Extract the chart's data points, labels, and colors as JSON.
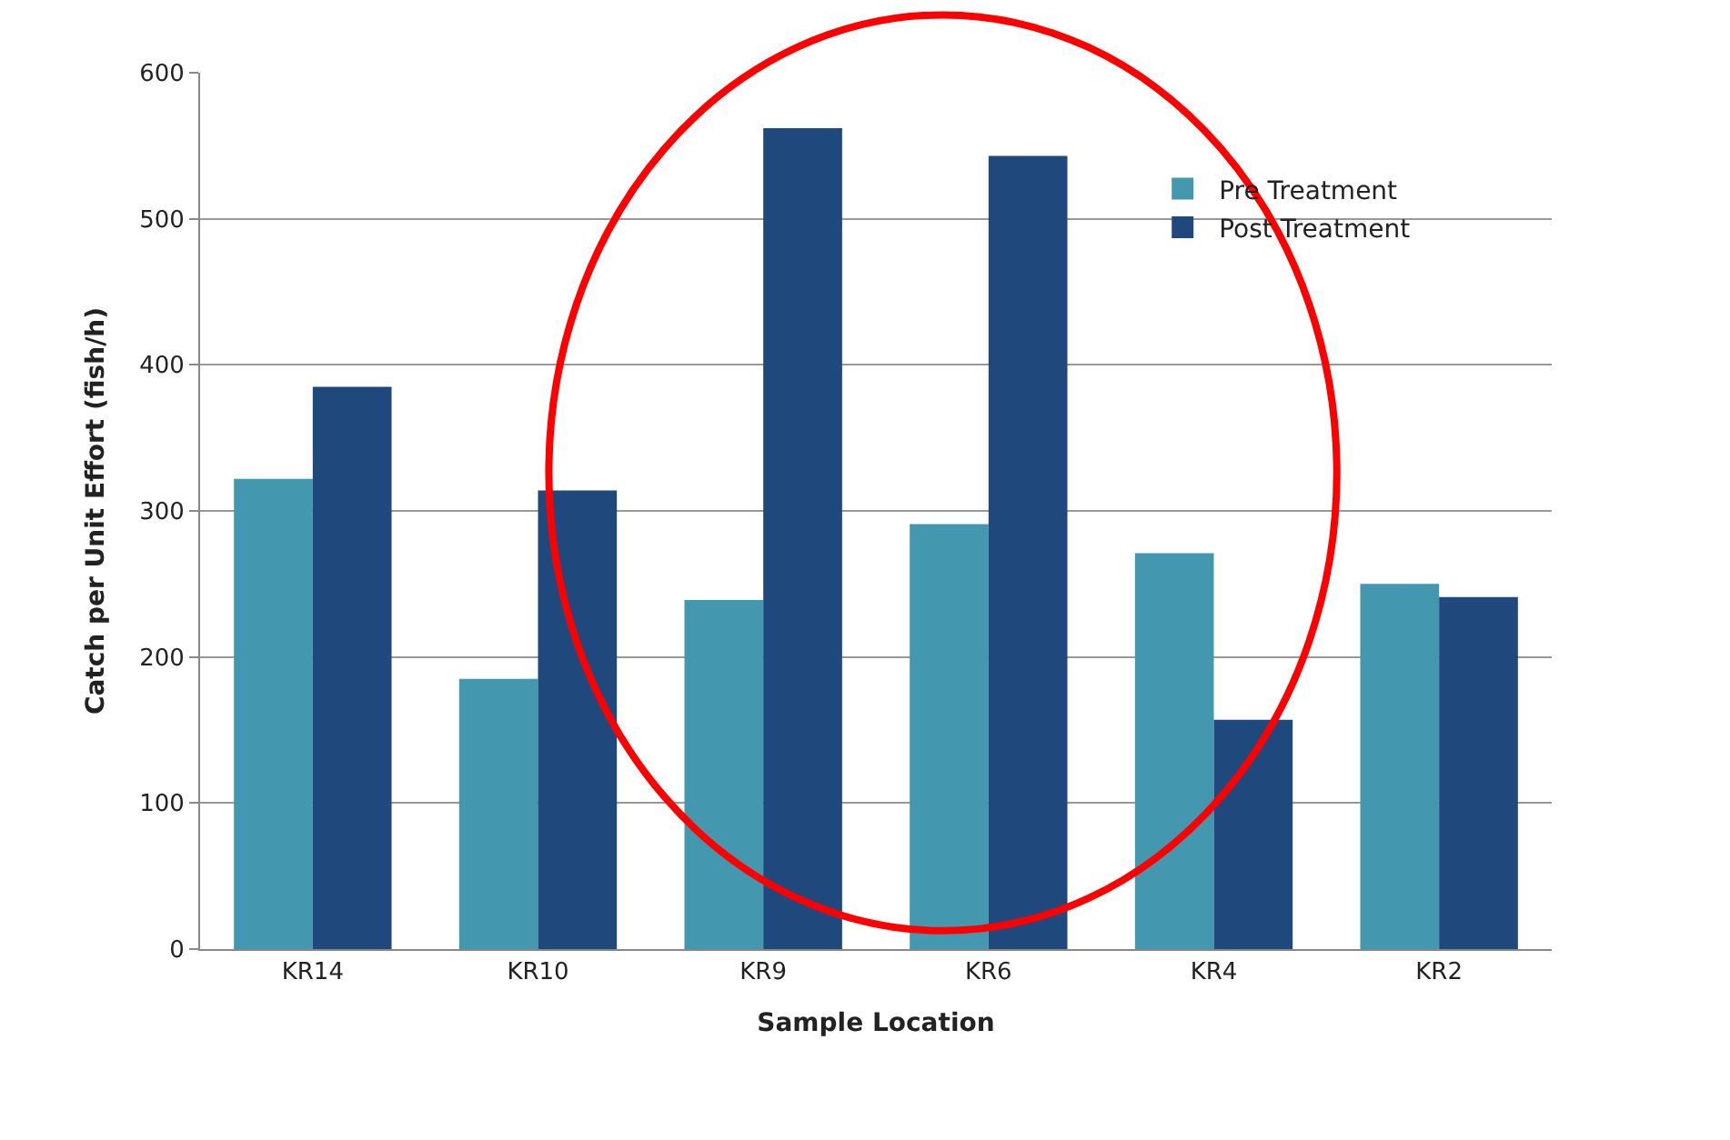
{
  "chart_data": {
    "type": "bar",
    "xlabel": "Sample Location",
    "ylabel": "Catch per Unit Effort (fish/h)",
    "categories": [
      "KR14",
      "KR10",
      "KR9",
      "KR6",
      "KR4",
      "KR2"
    ],
    "series": [
      {
        "name": "Pre Treatment",
        "color": "#4398b0",
        "values": [
          322,
          185,
          239,
          291,
          271,
          250
        ]
      },
      {
        "name": "Post Treatment",
        "color": "#1f497d",
        "values": [
          385,
          314,
          562,
          543,
          157,
          241
        ]
      }
    ],
    "ylim": [
      0,
      600
    ],
    "yticks": [
      0,
      100,
      200,
      300,
      400,
      500,
      600
    ],
    "grid": "y",
    "legend": "top right"
  }
}
